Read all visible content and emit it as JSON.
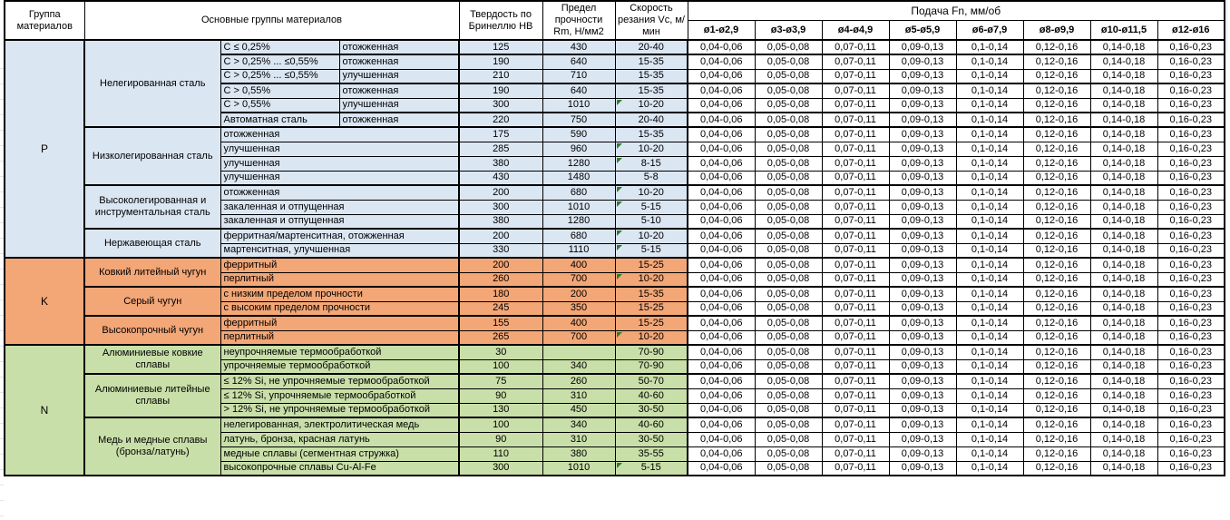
{
  "sheet": {
    "colors": {
      "steel_blue": "#dbe6f3",
      "cast_iron_orange": "#f3a676",
      "nonferrous_green": "#c9dfa9",
      "comment_flag_green": "#2e7d32",
      "border_black": "#000000"
    },
    "header": {
      "col_group": "Группа материалов",
      "col_main_groups": "Основные группы материалов",
      "col_hardness": "Твердость по Бринеллю HB",
      "col_strength": "Предел прочности Rm, Н/мм2",
      "col_speed": "Скорость резания Vc, м/мин",
      "feed_title": "Подача Fn, мм/об",
      "feed_cols": [
        "ø1-ø2,9",
        "ø3-ø3,9",
        "ø4-ø4,9",
        "ø5-ø5,9",
        "ø6-ø7,9",
        "ø8-ø9,9",
        "ø10-ø11,5",
        "ø12-ø16"
      ]
    },
    "feed_values": [
      "0,04-0,06",
      "0,05-0,08",
      "0,07-0,11",
      "0,09-0,13",
      "0,1-0,14",
      "0,12-0,16",
      "0,14-0,18",
      "0,16-0,23"
    ],
    "groups": [
      {
        "code": "P",
        "color": "#dbe6f3",
        "subgroups": [
          {
            "name": "Нелегированная сталь",
            "rows": [
              {
                "cond": "C ≤ 0,25%",
                "state": "отожженная",
                "hb": "125",
                "rm": "430",
                "vc": "20-40"
              },
              {
                "cond": "C > 0,25% ... ≤0,55%",
                "state": "отожженная",
                "hb": "190",
                "rm": "640",
                "vc": "15-35",
                "sep": true
              },
              {
                "cond": "C > 0,25% ... ≤0,55%",
                "state": "улучшенная",
                "hb": "210",
                "rm": "710",
                "vc": "15-35"
              },
              {
                "cond": "C > 0,55%",
                "state": "отожженная",
                "hb": "190",
                "rm": "640",
                "vc": "15-35",
                "sep": true
              },
              {
                "cond": "C > 0,55%",
                "state": "улучшенная",
                "hb": "300",
                "rm": "1010",
                "vc": "10-20",
                "flag": true
              },
              {
                "cond": "Автоматная сталь",
                "state": "отожженная",
                "hb": "220",
                "rm": "750",
                "vc": "20-40",
                "sep": true
              }
            ]
          },
          {
            "name": "Низколегированная сталь",
            "rows": [
              {
                "desc": "отожженная",
                "hb": "175",
                "rm": "590",
                "vc": "15-35"
              },
              {
                "desc": "улучшенная",
                "hb": "285",
                "rm": "960",
                "vc": "10-20",
                "flag": true
              },
              {
                "desc": "улучшенная",
                "hb": "380",
                "rm": "1280",
                "vc": "8-15",
                "flag": true
              },
              {
                "desc": "улучшенная",
                "hb": "430",
                "rm": "1480",
                "vc": "5-8"
              }
            ]
          },
          {
            "name": "Высоколегированная и инструментальная сталь",
            "rows": [
              {
                "desc": "отожженная",
                "hb": "200",
                "rm": "680",
                "vc": "10-20",
                "flag": true
              },
              {
                "desc": "закаленная и отпущенная",
                "hb": "300",
                "rm": "1010",
                "vc": "5-15",
                "flag": true
              },
              {
                "desc": "закаленная и отпущенная",
                "hb": "380",
                "rm": "1280",
                "vc": "5-10"
              }
            ]
          },
          {
            "name": "Нержавеющая сталь",
            "rows": [
              {
                "desc": "ферритная/мартенситная, отожженная",
                "hb": "200",
                "rm": "680",
                "vc": "10-20",
                "flag": true
              },
              {
                "desc": "мартенситная, улучшенная",
                "hb": "330",
                "rm": "1110",
                "vc": "5-15",
                "flag": true
              }
            ]
          }
        ]
      },
      {
        "code": "K",
        "color": "#f3a676",
        "subgroups": [
          {
            "name": "Ковкий литейный чугун",
            "rows": [
              {
                "desc": "ферритный",
                "hb": "200",
                "rm": "400",
                "vc": "15-25"
              },
              {
                "desc": "перлитный",
                "hb": "260",
                "rm": "700",
                "vc": "10-20",
                "flag": true
              }
            ]
          },
          {
            "name": "Серый чугун",
            "rows": [
              {
                "desc": "с низким пределом прочности",
                "hb": "180",
                "rm": "200",
                "vc": "15-35"
              },
              {
                "desc": "с высоким пределом прочности",
                "hb": "245",
                "rm": "350",
                "vc": "15-25"
              }
            ]
          },
          {
            "name": "Высокопрочный чугун",
            "rows": [
              {
                "desc": "ферритный",
                "hb": "155",
                "rm": "400",
                "vc": "15-25"
              },
              {
                "desc": "перлитный",
                "hb": "265",
                "rm": "700",
                "vc": "10-20",
                "flag": true
              }
            ]
          }
        ]
      },
      {
        "code": "N",
        "color": "#c9dfa9",
        "subgroups": [
          {
            "name": "Алюминиевые ковкие сплавы",
            "rows": [
              {
                "desc": "неупрочняемые термообработкой",
                "hb": "30",
                "rm": "",
                "vc": "70-90"
              },
              {
                "desc": "упрочняемые термообработкой",
                "hb": "100",
                "rm": "340",
                "vc": "70-90"
              }
            ]
          },
          {
            "name": "Алюминиевые литейные сплавы",
            "rows": [
              {
                "desc": "≤ 12% Si, не упрочняемые термообработкой",
                "hb": "75",
                "rm": "260",
                "vc": "50-70"
              },
              {
                "desc": "≤ 12% Si, упрочняемые термообработкой",
                "hb": "90",
                "rm": "310",
                "vc": "40-60"
              },
              {
                "desc": "> 12% Si, не упрочняемые термообработкой",
                "hb": "130",
                "rm": "450",
                "vc": "30-50"
              }
            ]
          },
          {
            "name": "Медь и медные сплавы (бронза/латунь)",
            "rows": [
              {
                "desc": "нелегированная, электролитическая медь",
                "hb": "100",
                "rm": "340",
                "vc": "40-60"
              },
              {
                "desc": "латунь, бронза, красная латунь",
                "hb": "90",
                "rm": "310",
                "vc": "30-50"
              },
              {
                "desc": "медные сплавы (сегментная стружка)",
                "hb": "110",
                "rm": "380",
                "vc": "35-55"
              },
              {
                "desc": "высокопрочные сплавы Cu-Al-Fe",
                "hb": "300",
                "rm": "1010",
                "vc": "5-15",
                "flag": true
              }
            ]
          }
        ]
      }
    ]
  }
}
